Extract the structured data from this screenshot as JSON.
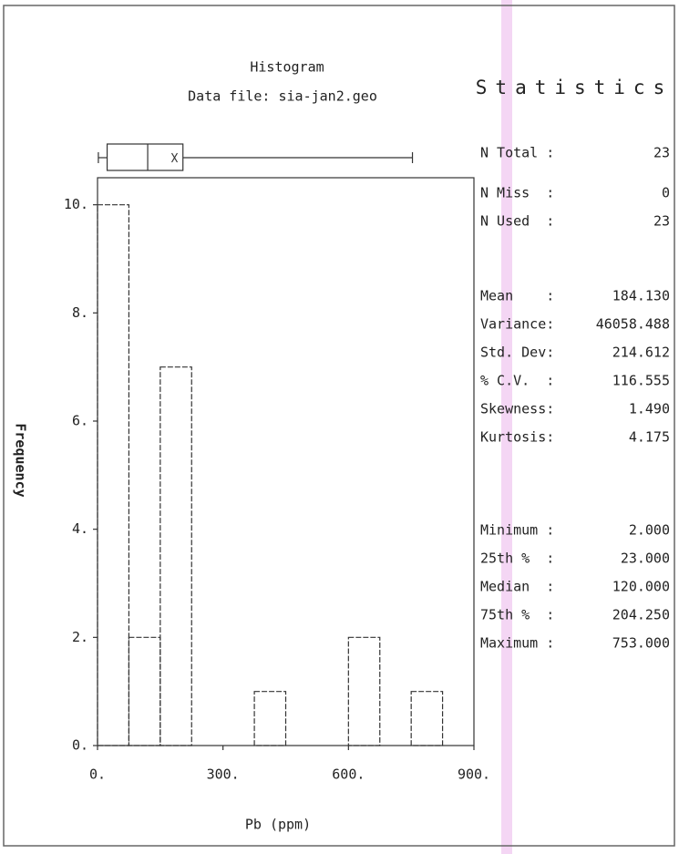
{
  "chart_data": {
    "type": "histogram",
    "title": "Histogram",
    "subtitle": "Data file: sia-jan2.geo",
    "x_label": "Pb (ppm)",
    "y_label": "Frequency",
    "bins": [
      0,
      75,
      150,
      225,
      300,
      375,
      450,
      525,
      600,
      675,
      750,
      825
    ],
    "counts": [
      10,
      2,
      7,
      0,
      0,
      1,
      0,
      0,
      2,
      0,
      1
    ],
    "color": "#333333",
    "xlim": [
      0,
      900
    ],
    "xticks": [
      {
        "value": 0,
        "label": "0."
      },
      {
        "value": 300,
        "label": "300."
      },
      {
        "value": 600,
        "label": "600."
      },
      {
        "value": 900,
        "label": "900."
      }
    ],
    "ylim": [
      0,
      10.5
    ],
    "yticks": [
      {
        "value": 0,
        "label": "0."
      },
      {
        "value": 2,
        "label": "2."
      },
      {
        "value": 4,
        "label": "4."
      },
      {
        "value": 6,
        "label": "6."
      },
      {
        "value": 8,
        "label": "8."
      },
      {
        "value": 10,
        "label": "10."
      }
    ],
    "statistics": {
      "title": "Statistics",
      "labels": [
        "N Total :",
        "N Miss  :",
        "N Used  :",
        "Mean    :",
        "Variance:",
        "Std. Dev:",
        "% C.V.  :",
        "Skewness:",
        "Kurtosis:",
        "Minimum :",
        "25th %  :",
        "Median  :",
        "75th %  :",
        "Maximum :"
      ],
      "values": [
        23,
        0,
        23,
        184.13,
        46058.488,
        214.612,
        116.555,
        1.49,
        4.175,
        2,
        23,
        120,
        204.25,
        753
      ],
      "value_labels": [
        "23",
        "0",
        "23",
        "184.130",
        "46058.488",
        "214.612",
        "116.555",
        "1.490",
        "4.175",
        "2.000",
        "23.000",
        "120.000",
        "204.250",
        "753.000"
      ]
    }
  }
}
